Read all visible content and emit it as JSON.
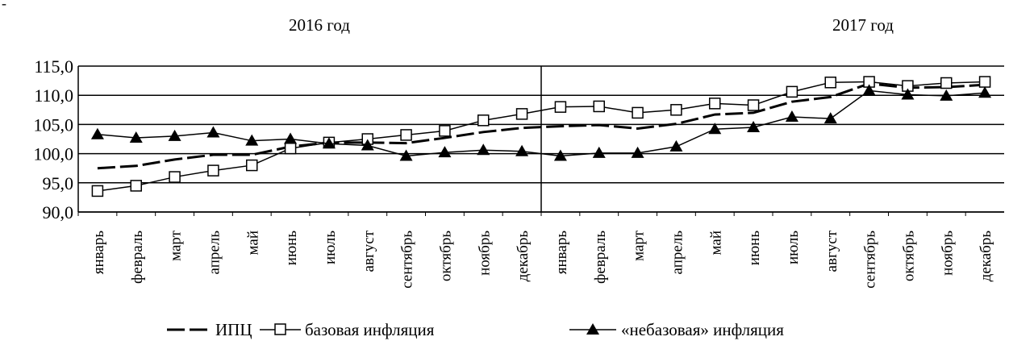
{
  "chart_data": {
    "type": "line",
    "top_mark": "-",
    "year_labels": [
      "2016 год",
      "2017 год"
    ],
    "categories": [
      "январь",
      "февраль",
      "март",
      "апрель",
      "май",
      "июнь",
      "июль",
      "август",
      "сентябрь",
      "октябрь",
      "ноябрь",
      "декабрь",
      "январь",
      "февраль",
      "март",
      "апрель",
      "май",
      "июнь",
      "июль",
      "август",
      "сентябрь",
      "октябрь",
      "ноябрь",
      "декабрь"
    ],
    "ylim": [
      90,
      115
    ],
    "yticks": [
      "90,0",
      "95,0",
      "100,0",
      "105,0",
      "110,0",
      "115,0"
    ],
    "ytick_values": [
      90,
      95,
      100,
      105,
      110,
      115
    ],
    "grid": "horizontal",
    "legend_position": "bottom",
    "series": [
      {
        "name": "ИПЦ",
        "marker": "none",
        "style": "dashed",
        "values": [
          97.5,
          97.9,
          99.0,
          99.8,
          99.8,
          101.2,
          101.9,
          101.9,
          101.8,
          102.7,
          103.7,
          104.4,
          104.7,
          104.9,
          104.3,
          105.1,
          106.7,
          107.0,
          108.9,
          109.7,
          112.0,
          111.3,
          111.4,
          111.8
        ]
      },
      {
        "name": "базовая инфляция",
        "marker": "square",
        "style": "solid",
        "values": [
          93.6,
          94.5,
          96.0,
          97.1,
          98.0,
          100.9,
          101.9,
          102.5,
          103.2,
          103.9,
          105.7,
          106.8,
          108.0,
          108.1,
          107.0,
          107.5,
          108.6,
          108.3,
          110.6,
          112.2,
          112.3,
          111.6,
          112.1,
          112.3
        ]
      },
      {
        "name": "«небазовая» инфляция",
        "marker": "triangle",
        "style": "solid",
        "values": [
          103.3,
          102.7,
          103.0,
          103.6,
          102.2,
          102.5,
          101.7,
          101.4,
          99.6,
          100.2,
          100.6,
          100.4,
          99.6,
          100.1,
          100.1,
          101.2,
          104.2,
          104.5,
          106.3,
          106.0,
          110.8,
          110.1,
          109.9,
          110.4
        ]
      }
    ]
  }
}
